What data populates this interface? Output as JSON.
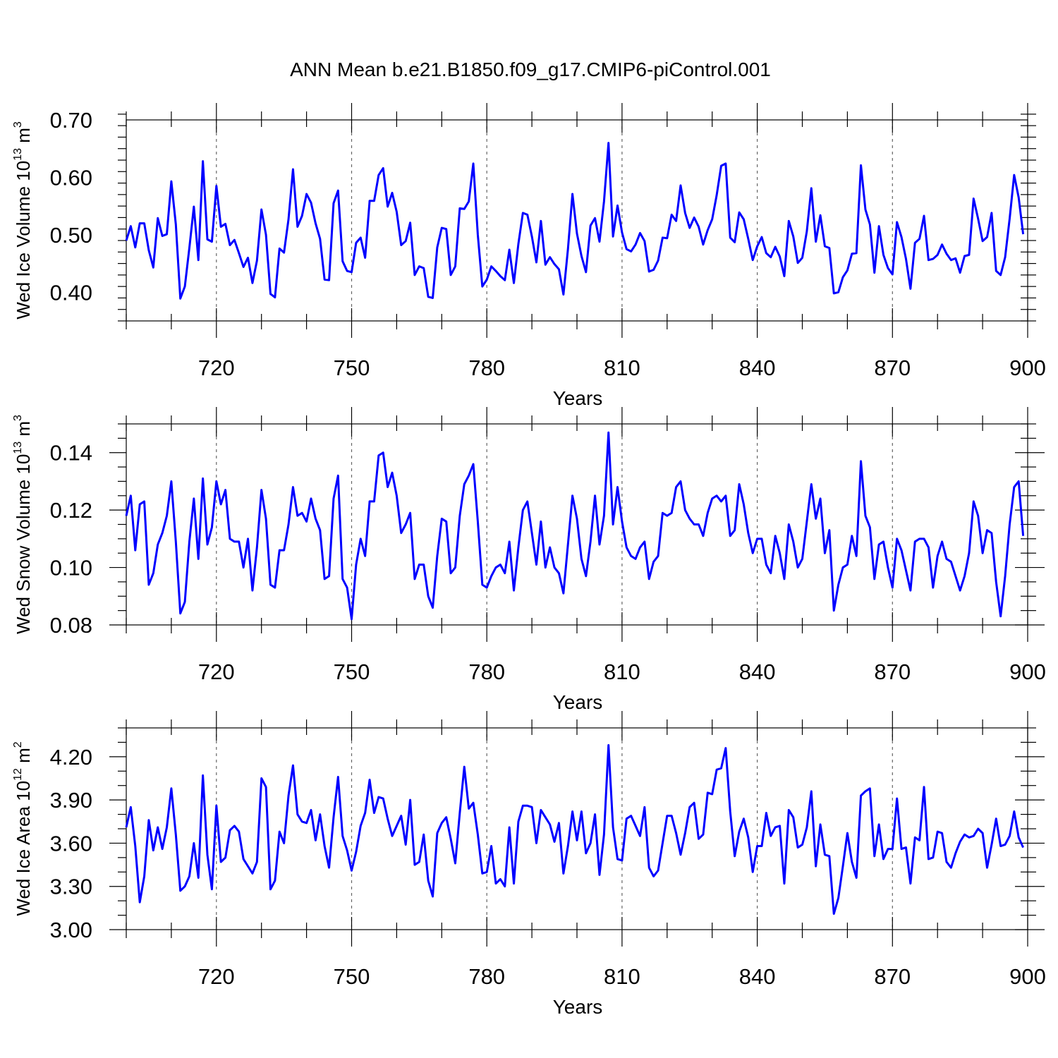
{
  "title": "ANN Mean b.e21.B1850.f09_g17.CMIP6-piControl.001",
  "chart_data": [
    {
      "type": "line",
      "name": "ice-volume",
      "ylabel": {
        "text": "Wed Ice Volume 10",
        "exp": "13",
        "unit": " m",
        "unit_exp": "3"
      },
      "xlabel": "Years",
      "xlim": [
        700,
        900
      ],
      "ylim": [
        0.35,
        0.7
      ],
      "xticks": [
        720,
        750,
        780,
        810,
        840,
        870,
        900
      ],
      "yticks": [
        0.4,
        0.5,
        0.6,
        0.7
      ],
      "ytick_labels": [
        "0.40",
        "0.50",
        "0.60",
        "0.70"
      ],
      "ytick_minor_step": 0.02,
      "grid_x": true,
      "color": "#0000ff",
      "x_start": 700,
      "values": [
        0.49,
        0.515,
        0.478,
        0.52,
        0.52,
        0.473,
        0.443,
        0.529,
        0.498,
        0.501,
        0.593,
        0.518,
        0.389,
        0.41,
        0.477,
        0.549,
        0.456,
        0.628,
        0.492,
        0.488,
        0.585,
        0.514,
        0.519,
        0.482,
        0.491,
        0.468,
        0.444,
        0.46,
        0.416,
        0.455,
        0.544,
        0.5,
        0.397,
        0.391,
        0.476,
        0.469,
        0.527,
        0.614,
        0.514,
        0.533,
        0.571,
        0.556,
        0.52,
        0.493,
        0.422,
        0.421,
        0.555,
        0.577,
        0.454,
        0.437,
        0.435,
        0.486,
        0.495,
        0.46,
        0.559,
        0.559,
        0.604,
        0.616,
        0.549,
        0.573,
        0.54,
        0.482,
        0.489,
        0.521,
        0.43,
        0.445,
        0.442,
        0.392,
        0.39,
        0.478,
        0.512,
        0.51,
        0.43,
        0.445,
        0.546,
        0.545,
        0.558,
        0.624,
        0.5,
        0.41,
        0.422,
        0.445,
        0.437,
        0.428,
        0.421,
        0.474,
        0.416,
        0.484,
        0.538,
        0.535,
        0.497,
        0.452,
        0.524,
        0.448,
        0.461,
        0.449,
        0.44,
        0.396,
        0.475,
        0.571,
        0.502,
        0.463,
        0.435,
        0.516,
        0.529,
        0.488,
        0.558,
        0.66,
        0.497,
        0.551,
        0.504,
        0.475,
        0.471,
        0.483,
        0.503,
        0.489,
        0.436,
        0.439,
        0.455,
        0.495,
        0.494,
        0.535,
        0.524,
        0.586,
        0.538,
        0.512,
        0.53,
        0.514,
        0.483,
        0.508,
        0.527,
        0.569,
        0.62,
        0.624,
        0.495,
        0.487,
        0.539,
        0.527,
        0.493,
        0.456,
        0.48,
        0.496,
        0.468,
        0.461,
        0.479,
        0.462,
        0.428,
        0.524,
        0.497,
        0.451,
        0.46,
        0.506,
        0.581,
        0.488,
        0.534,
        0.48,
        0.477,
        0.398,
        0.4,
        0.426,
        0.438,
        0.467,
        0.468,
        0.621,
        0.544,
        0.518,
        0.434,
        0.515,
        0.465,
        0.442,
        0.431,
        0.522,
        0.496,
        0.458,
        0.406,
        0.486,
        0.493,
        0.533,
        0.456,
        0.458,
        0.465,
        0.483,
        0.467,
        0.456,
        0.459,
        0.434,
        0.463,
        0.465,
        0.563,
        0.528,
        0.489,
        0.496,
        0.538,
        0.437,
        0.43,
        0.461,
        0.528,
        0.604,
        0.565,
        0.501
      ]
    },
    {
      "type": "line",
      "name": "snow-volume",
      "ylabel": {
        "text": "Wed Snow Volume 10",
        "exp": "13",
        "unit": " m",
        "unit_exp": "3"
      },
      "xlabel": "Years",
      "xlim": [
        700,
        900
      ],
      "ylim": [
        0.08,
        0.15
      ],
      "xticks": [
        720,
        750,
        780,
        810,
        840,
        870,
        900
      ],
      "yticks": [
        0.08,
        0.1,
        0.12,
        0.14
      ],
      "ytick_labels": [
        "0.08",
        "0.10",
        "0.12",
        "0.14"
      ],
      "ytick_minor_step": 0.005,
      "grid_x": true,
      "color": "#0000ff",
      "x_start": 700,
      "values": [
        0.118,
        0.125,
        0.106,
        0.122,
        0.123,
        0.094,
        0.098,
        0.108,
        0.112,
        0.118,
        0.13,
        0.109,
        0.084,
        0.088,
        0.109,
        0.124,
        0.103,
        0.131,
        0.108,
        0.114,
        0.13,
        0.122,
        0.127,
        0.11,
        0.109,
        0.109,
        0.1,
        0.11,
        0.092,
        0.107,
        0.127,
        0.117,
        0.094,
        0.093,
        0.106,
        0.106,
        0.115,
        0.128,
        0.118,
        0.119,
        0.116,
        0.124,
        0.117,
        0.113,
        0.096,
        0.097,
        0.124,
        0.132,
        0.096,
        0.093,
        0.082,
        0.101,
        0.11,
        0.104,
        0.123,
        0.123,
        0.139,
        0.14,
        0.128,
        0.133,
        0.125,
        0.112,
        0.115,
        0.119,
        0.096,
        0.101,
        0.101,
        0.09,
        0.086,
        0.104,
        0.117,
        0.116,
        0.098,
        0.1,
        0.118,
        0.129,
        0.132,
        0.136,
        0.116,
        0.094,
        0.093,
        0.097,
        0.1,
        0.101,
        0.098,
        0.109,
        0.092,
        0.107,
        0.12,
        0.123,
        0.112,
        0.101,
        0.116,
        0.1,
        0.107,
        0.1,
        0.098,
        0.091,
        0.108,
        0.125,
        0.117,
        0.103,
        0.097,
        0.109,
        0.125,
        0.108,
        0.118,
        0.147,
        0.115,
        0.128,
        0.116,
        0.107,
        0.104,
        0.103,
        0.107,
        0.109,
        0.096,
        0.102,
        0.104,
        0.119,
        0.118,
        0.119,
        0.128,
        0.13,
        0.12,
        0.117,
        0.115,
        0.115,
        0.111,
        0.119,
        0.124,
        0.125,
        0.123,
        0.125,
        0.111,
        0.113,
        0.129,
        0.122,
        0.112,
        0.105,
        0.11,
        0.11,
        0.101,
        0.098,
        0.111,
        0.105,
        0.096,
        0.115,
        0.109,
        0.1,
        0.103,
        0.116,
        0.129,
        0.117,
        0.124,
        0.105,
        0.113,
        0.085,
        0.094,
        0.1,
        0.101,
        0.111,
        0.104,
        0.137,
        0.118,
        0.114,
        0.096,
        0.108,
        0.109,
        0.1,
        0.093,
        0.11,
        0.106,
        0.099,
        0.092,
        0.109,
        0.11,
        0.11,
        0.107,
        0.093,
        0.104,
        0.109,
        0.103,
        0.102,
        0.097,
        0.092,
        0.097,
        0.105,
        0.123,
        0.118,
        0.105,
        0.113,
        0.112,
        0.095,
        0.083,
        0.097,
        0.115,
        0.128,
        0.13,
        0.111
      ]
    },
    {
      "type": "line",
      "name": "ice-area",
      "ylabel": {
        "text": "Wed Ice Area 10",
        "exp": "12",
        "unit": " m",
        "unit_exp": "2"
      },
      "xlabel": "Years",
      "xlim": [
        700,
        900
      ],
      "ylim": [
        3.0,
        4.4
      ],
      "xticks": [
        720,
        750,
        780,
        810,
        840,
        870,
        900
      ],
      "yticks": [
        3.0,
        3.3,
        3.6,
        3.9,
        4.2
      ],
      "ytick_labels": [
        "3.00",
        "3.30",
        "3.60",
        "3.90",
        "4.20"
      ],
      "ytick_minor_step": 0.1,
      "grid_x": true,
      "color": "#0000ff",
      "x_start": 700,
      "values": [
        3.71,
        3.85,
        3.58,
        3.19,
        3.37,
        3.76,
        3.55,
        3.71,
        3.56,
        3.71,
        3.98,
        3.66,
        3.27,
        3.3,
        3.37,
        3.6,
        3.36,
        4.07,
        3.52,
        3.28,
        3.86,
        3.47,
        3.5,
        3.69,
        3.72,
        3.68,
        3.49,
        3.44,
        3.39,
        3.47,
        4.05,
        3.99,
        3.28,
        3.34,
        3.68,
        3.6,
        3.93,
        4.14,
        3.8,
        3.75,
        3.74,
        3.83,
        3.62,
        3.8,
        3.58,
        3.43,
        3.78,
        4.06,
        3.65,
        3.55,
        3.41,
        3.54,
        3.72,
        3.81,
        4.04,
        3.81,
        3.92,
        3.91,
        3.77,
        3.65,
        3.72,
        3.79,
        3.59,
        3.9,
        3.45,
        3.47,
        3.66,
        3.34,
        3.23,
        3.67,
        3.74,
        3.78,
        3.63,
        3.46,
        3.81,
        4.13,
        3.84,
        3.88,
        3.66,
        3.39,
        3.4,
        3.58,
        3.32,
        3.35,
        3.3,
        3.71,
        3.32,
        3.75,
        3.86,
        3.86,
        3.85,
        3.6,
        3.83,
        3.78,
        3.73,
        3.61,
        3.74,
        3.39,
        3.58,
        3.82,
        3.62,
        3.82,
        3.53,
        3.6,
        3.8,
        3.38,
        3.66,
        4.28,
        3.71,
        3.49,
        3.48,
        3.77,
        3.79,
        3.72,
        3.65,
        3.85,
        3.43,
        3.37,
        3.41,
        3.6,
        3.79,
        3.79,
        3.67,
        3.52,
        3.67,
        3.85,
        3.88,
        3.63,
        3.66,
        3.95,
        3.94,
        4.11,
        4.12,
        4.26,
        3.82,
        3.51,
        3.68,
        3.77,
        3.64,
        3.4,
        3.58,
        3.58,
        3.81,
        3.65,
        3.71,
        3.72,
        3.32,
        3.83,
        3.78,
        3.57,
        3.59,
        3.71,
        3.96,
        3.44,
        3.73,
        3.52,
        3.51,
        3.11,
        3.22,
        3.44,
        3.67,
        3.47,
        3.36,
        3.93,
        3.96,
        3.98,
        3.51,
        3.73,
        3.49,
        3.56,
        3.56,
        3.91,
        3.56,
        3.57,
        3.32,
        3.64,
        3.62,
        3.99,
        3.49,
        3.5,
        3.68,
        3.67,
        3.47,
        3.43,
        3.53,
        3.61,
        3.66,
        3.64,
        3.65,
        3.7,
        3.67,
        3.43,
        3.59,
        3.77,
        3.58,
        3.59,
        3.65,
        3.82,
        3.64,
        3.57
      ]
    }
  ]
}
